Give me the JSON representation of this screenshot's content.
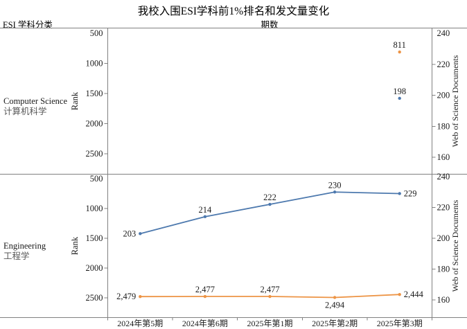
{
  "title": "我校入围ESI学科前1%排名和发文量变化",
  "header": {
    "left": "ESI 学科分类",
    "center": "期数"
  },
  "colors": {
    "rank_series": "#ed9445",
    "docs_series": "#4d79ae",
    "axis": "#808080",
    "text": "#1a1a1a",
    "subtext": "#595959"
  },
  "x_categories": [
    "2024年第5期",
    "2024年第6期",
    "2025年第1期",
    "2025年第2期",
    "2025年第3期"
  ],
  "chart_data": [
    {
      "type": "line",
      "subject_en": "Computer Science",
      "subject_zh": "计算机科学",
      "left_axis": {
        "label": "Rank",
        "ticks": [
          "500",
          "1000",
          "1500",
          "2000",
          "2500"
        ],
        "range": [
          500,
          2500
        ],
        "inverted": true
      },
      "right_axis": {
        "label": "Web of Science Documents",
        "ticks": [
          "240",
          "220",
          "200",
          "180",
          "160"
        ],
        "range": [
          240,
          160
        ]
      },
      "series": [
        {
          "name": "Rank",
          "axis": "left",
          "color": "rank_series",
          "points": [
            {
              "x": 4,
              "value": 811,
              "label": "811",
              "label_pos": "above"
            }
          ]
        },
        {
          "name": "Web of Science Documents",
          "axis": "right",
          "color": "docs_series",
          "points": [
            {
              "x": 4,
              "value": 198,
              "label": "198",
              "label_pos": "above"
            }
          ]
        }
      ]
    },
    {
      "type": "line",
      "subject_en": "Engineering",
      "subject_zh": "工程学",
      "left_axis": {
        "label": "Rank",
        "ticks": [
          "500",
          "1000",
          "1500",
          "2000",
          "2500"
        ],
        "range": [
          500,
          2500
        ],
        "inverted": true
      },
      "right_axis": {
        "label": "Web of Science Documents",
        "ticks": [
          "240",
          "220",
          "200",
          "180",
          "160"
        ],
        "range": [
          240,
          160
        ]
      },
      "series": [
        {
          "name": "Rank",
          "axis": "left",
          "color": "rank_series",
          "points": [
            {
              "x": 0,
              "value": 2479,
              "label": "2,479",
              "label_pos": "left"
            },
            {
              "x": 1,
              "value": 2477,
              "label": "2,477",
              "label_pos": "above"
            },
            {
              "x": 2,
              "value": 2477,
              "label": "2,477",
              "label_pos": "above"
            },
            {
              "x": 3,
              "value": 2494,
              "label": "2,494",
              "label_pos": "below"
            },
            {
              "x": 4,
              "value": 2444,
              "label": "2,444",
              "label_pos": "right"
            }
          ]
        },
        {
          "name": "Web of Science Documents",
          "axis": "right",
          "color": "docs_series",
          "points": [
            {
              "x": 0,
              "value": 203,
              "label": "203",
              "label_pos": "left"
            },
            {
              "x": 1,
              "value": 214,
              "label": "214",
              "label_pos": "above"
            },
            {
              "x": 2,
              "value": 222,
              "label": "222",
              "label_pos": "above"
            },
            {
              "x": 3,
              "value": 230,
              "label": "230",
              "label_pos": "above"
            },
            {
              "x": 4,
              "value": 229,
              "label": "229",
              "label_pos": "right"
            }
          ]
        }
      ]
    }
  ]
}
